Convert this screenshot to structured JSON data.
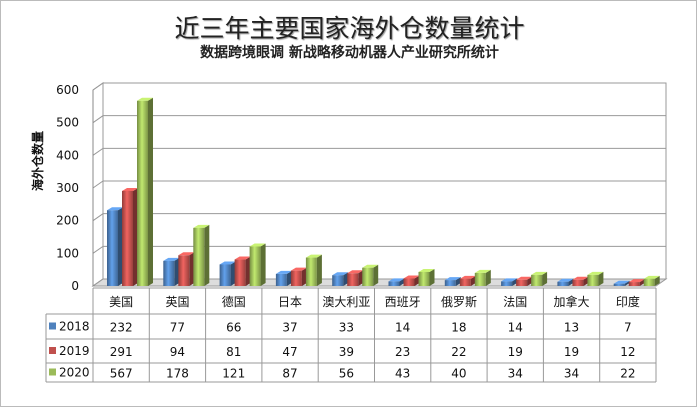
{
  "chart_data": {
    "type": "bar",
    "title": "近三年主要国家海外仓数量统计",
    "subtitle": "数据跨境眼调 新战略移动机器人产业研究所统计",
    "ylabel": "海外仓数量",
    "xlabel": "",
    "ylim": [
      0,
      600
    ],
    "yticks": [
      0,
      100,
      200,
      300,
      400,
      500,
      600
    ],
    "grid": true,
    "legend": "data-table",
    "categories": [
      "美国",
      "英国",
      "德国",
      "日本",
      "澳大利亚",
      "西班牙",
      "俄罗斯",
      "法国",
      "加拿大",
      "印度"
    ],
    "series": [
      {
        "name": "2018",
        "color": "#4f81bd",
        "values": [
          232,
          77,
          66,
          37,
          33,
          14,
          18,
          14,
          13,
          7
        ]
      },
      {
        "name": "2019",
        "color": "#c0504d",
        "values": [
          291,
          94,
          81,
          47,
          39,
          23,
          22,
          19,
          19,
          12
        ]
      },
      {
        "name": "2020",
        "color": "#9bbb59",
        "values": [
          567,
          178,
          121,
          87,
          56,
          43,
          40,
          34,
          34,
          22
        ]
      }
    ]
  }
}
